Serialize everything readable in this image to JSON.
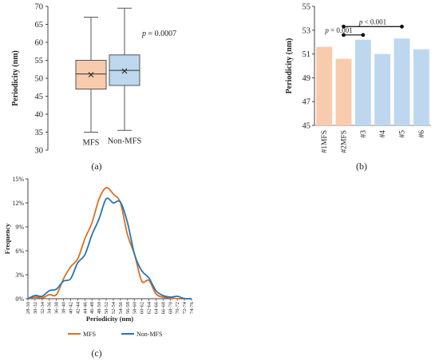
{
  "panels": {
    "a": "(a)",
    "b": "(b)",
    "c": "(c)"
  },
  "chart_data": [
    {
      "panel": "a",
      "type": "box",
      "ylabel": "Periodicity (nm)",
      "ylim": [
        30,
        70
      ],
      "yticks": [
        30,
        35,
        40,
        45,
        50,
        55,
        60,
        65,
        70
      ],
      "categories": [
        "MFS",
        "Non-MFS"
      ],
      "boxes": [
        {
          "name": "MFS",
          "min": 35,
          "q1": 47,
          "median": 51.2,
          "mean": 51,
          "q3": 55,
          "max": 67,
          "color": "#F8CBAD"
        },
        {
          "name": "Non-MFS",
          "min": 35.5,
          "q1": 48,
          "median": 52.2,
          "mean": 52,
          "q3": 56.5,
          "max": 69.5,
          "color": "#BDD7EE"
        }
      ],
      "annotation_prefix": "p",
      "annotation_value": "= 0.0007"
    },
    {
      "panel": "b",
      "type": "bar",
      "ylabel": "Periodicity (nm)",
      "ylim": [
        45,
        55
      ],
      "yticks": [
        45,
        47,
        49,
        51,
        53,
        55
      ],
      "categories": [
        "#1MFS",
        "#2MFS",
        "#3",
        "#4",
        "#5",
        "#6"
      ],
      "values": [
        51.6,
        50.6,
        52.2,
        51.0,
        52.3,
        51.4
      ],
      "colors": [
        "#F8CBAD",
        "#F8CBAD",
        "#BDD7EE",
        "#BDD7EE",
        "#BDD7EE",
        "#BDD7EE"
      ],
      "brackets": [
        {
          "from": 1,
          "to": 4,
          "level": 53.3,
          "label_prefix": "p",
          "label_value": "< 0.001"
        },
        {
          "from": 1,
          "to": 2,
          "level": 52.6,
          "label_prefix": "p",
          "label_value": "= 0.001"
        }
      ]
    },
    {
      "panel": "c",
      "type": "line",
      "ylabel": "Frequency",
      "xlabel": "Periodicity (nm)",
      "ylim": [
        0,
        15
      ],
      "yticks": [
        "0%",
        "3%",
        "6%",
        "9%",
        "12%",
        "15%"
      ],
      "categories": [
        "28-30",
        "30-32",
        "32-34",
        "34-36",
        "36-38",
        "38-40",
        "40-42",
        "42-44",
        "44-46",
        "46-48",
        "48-50",
        "50-52",
        "52-54",
        "54-56",
        "56-58",
        "58-60",
        "60-62",
        "62-64",
        "64-66",
        "66-68",
        "68-70",
        "70-72",
        "72-74",
        "74-76"
      ],
      "series": [
        {
          "name": "MFS",
          "color": "#E06D1E",
          "values": [
            0,
            0.2,
            0.1,
            0.5,
            0.5,
            2.5,
            4.0,
            5.0,
            7.5,
            9.5,
            12.5,
            13.9,
            13.1,
            12.0,
            8.0,
            5.5,
            2.2,
            2.3,
            0.6,
            0.2,
            0.1,
            0,
            0,
            0
          ]
        },
        {
          "name": "Non-MFS",
          "color": "#2376B6",
          "values": [
            0,
            0.4,
            0.3,
            1.0,
            1.2,
            2.2,
            2.5,
            4.5,
            5.5,
            8.0,
            10.0,
            12.5,
            12.0,
            12.1,
            9.5,
            5.5,
            3.5,
            2.6,
            1.0,
            0.4,
            0.2,
            0.3,
            0,
            0
          ]
        }
      ]
    }
  ]
}
